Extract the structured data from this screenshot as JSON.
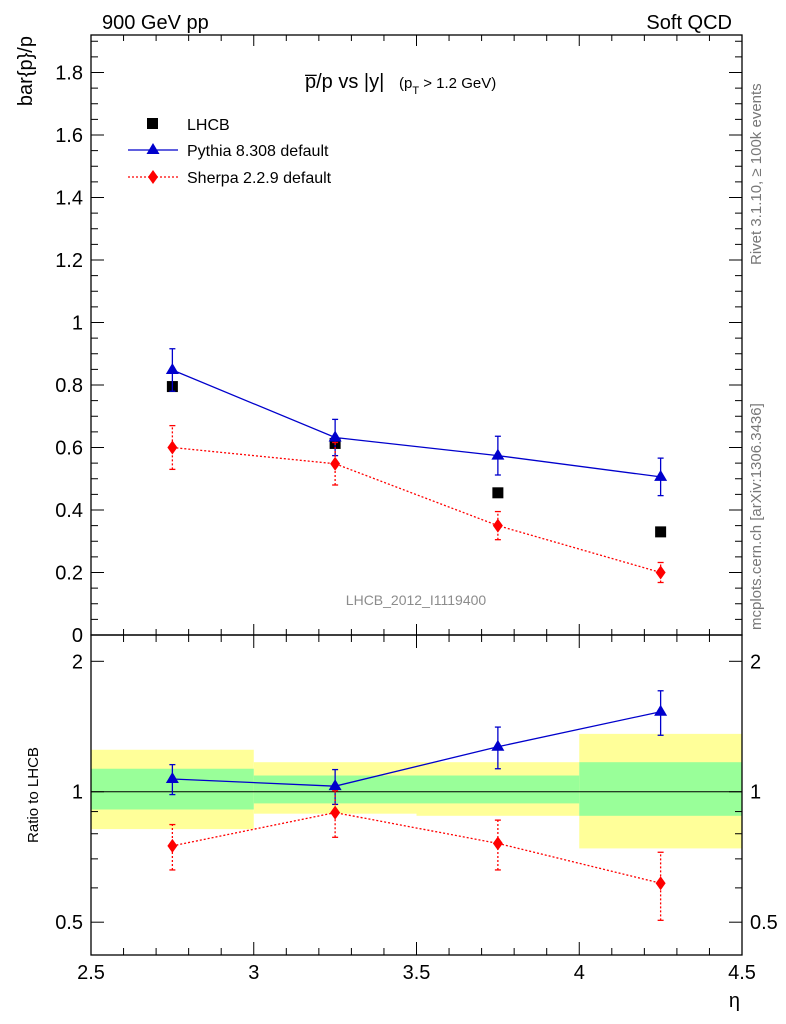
{
  "header": {
    "left": "900 GeV pp",
    "right": "Soft QCD"
  },
  "side_labels": {
    "rivet": "Rivet 3.1.10, ≥ 100k events",
    "mcplots": "mcplots.cern.ch [arXiv:1306.3436]"
  },
  "chart_data": [
    {
      "type": "scatter",
      "panel": "main",
      "title_main": "p̅/p vs |y|",
      "title_cut_prefix": "(p",
      "title_cut_sub": "T",
      "title_cut_suffix": " > 1.2 GeV)",
      "ylabel": "bar{p}/p",
      "xlim": [
        2.5,
        4.5
      ],
      "ylim": [
        0,
        1.92
      ],
      "y_ticks": [
        "0.2",
        "0.4",
        "0.6",
        "0.8",
        "1",
        "1.2",
        "1.4",
        "1.6",
        "1.8"
      ],
      "y_tick_values": [
        0.2,
        0.4,
        0.6,
        0.8,
        1.0,
        1.2,
        1.4,
        1.6,
        1.8
      ],
      "y_zero_label": "0",
      "watermark": "LHCB_2012_I1119400",
      "legend_position": "top-left",
      "series": [
        {
          "name": "LHCB",
          "style": "data",
          "color": "#000000",
          "marker": "square",
          "x": [
            2.75,
            3.25,
            3.75,
            4.25
          ],
          "y": [
            0.795,
            0.613,
            0.455,
            0.33
          ]
        },
        {
          "name": "Pythia 8.308 default",
          "style": "solid",
          "color": "#0000cc",
          "marker": "triangle",
          "x": [
            2.75,
            3.25,
            3.75,
            4.25
          ],
          "y": [
            0.848,
            0.632,
            0.574,
            0.506
          ],
          "err": [
            0.068,
            0.058,
            0.062,
            0.06
          ]
        },
        {
          "name": "Sherpa 2.2.9 default",
          "style": "dotted",
          "color": "#ff0000",
          "marker": "diamond",
          "x": [
            2.75,
            3.25,
            3.75,
            4.25
          ],
          "y": [
            0.6,
            0.548,
            0.35,
            0.2
          ],
          "err": [
            0.07,
            0.068,
            0.045,
            0.032
          ]
        }
      ]
    },
    {
      "type": "scatter",
      "panel": "ratio",
      "ylabel": "Ratio to LHCB",
      "xlabel": "η",
      "xlim": [
        2.5,
        4.5
      ],
      "ylim": [
        0.42,
        2.3
      ],
      "yscale": "log",
      "y_ticks": [
        "0.5",
        "1",
        "2"
      ],
      "y_tick_values": [
        0.5,
        1,
        2
      ],
      "x_ticks": [
        "2.5",
        "3",
        "3.5",
        "4",
        "4.5"
      ],
      "x_tick_values": [
        2.5,
        3,
        3.5,
        4,
        4.5
      ],
      "bands": [
        {
          "x0": 2.5,
          "x1": 3.0,
          "stat": [
            0.91,
            1.13
          ],
          "total": [
            0.82,
            1.25
          ]
        },
        {
          "x0": 3.0,
          "x1": 3.5,
          "stat": [
            0.94,
            1.09
          ],
          "total": [
            0.89,
            1.17
          ]
        },
        {
          "x0": 3.5,
          "x1": 4.0,
          "stat": [
            0.94,
            1.09
          ],
          "total": [
            0.88,
            1.17
          ]
        },
        {
          "x0": 4.0,
          "x1": 4.5,
          "stat": [
            0.88,
            1.17
          ],
          "total": [
            0.74,
            1.36
          ]
        }
      ],
      "band_colors": {
        "stat": "#99ff99",
        "total": "#ffff99"
      },
      "series": [
        {
          "name": "Pythia 8.308 default",
          "style": "solid",
          "color": "#0000cc",
          "marker": "triangle",
          "x": [
            2.75,
            3.25,
            3.75,
            4.25
          ],
          "y": [
            1.07,
            1.03,
            1.27,
            1.53
          ],
          "err": [
            0.085,
            0.095,
            0.14,
            0.18
          ]
        },
        {
          "name": "Sherpa 2.2.9 default",
          "style": "dotted",
          "color": "#ff0000",
          "marker": "diamond",
          "x": [
            2.75,
            3.25,
            3.75,
            4.25
          ],
          "y": [
            0.75,
            0.895,
            0.76,
            0.615
          ],
          "err": [
            0.09,
            0.11,
            0.1,
            0.11
          ]
        }
      ]
    }
  ]
}
